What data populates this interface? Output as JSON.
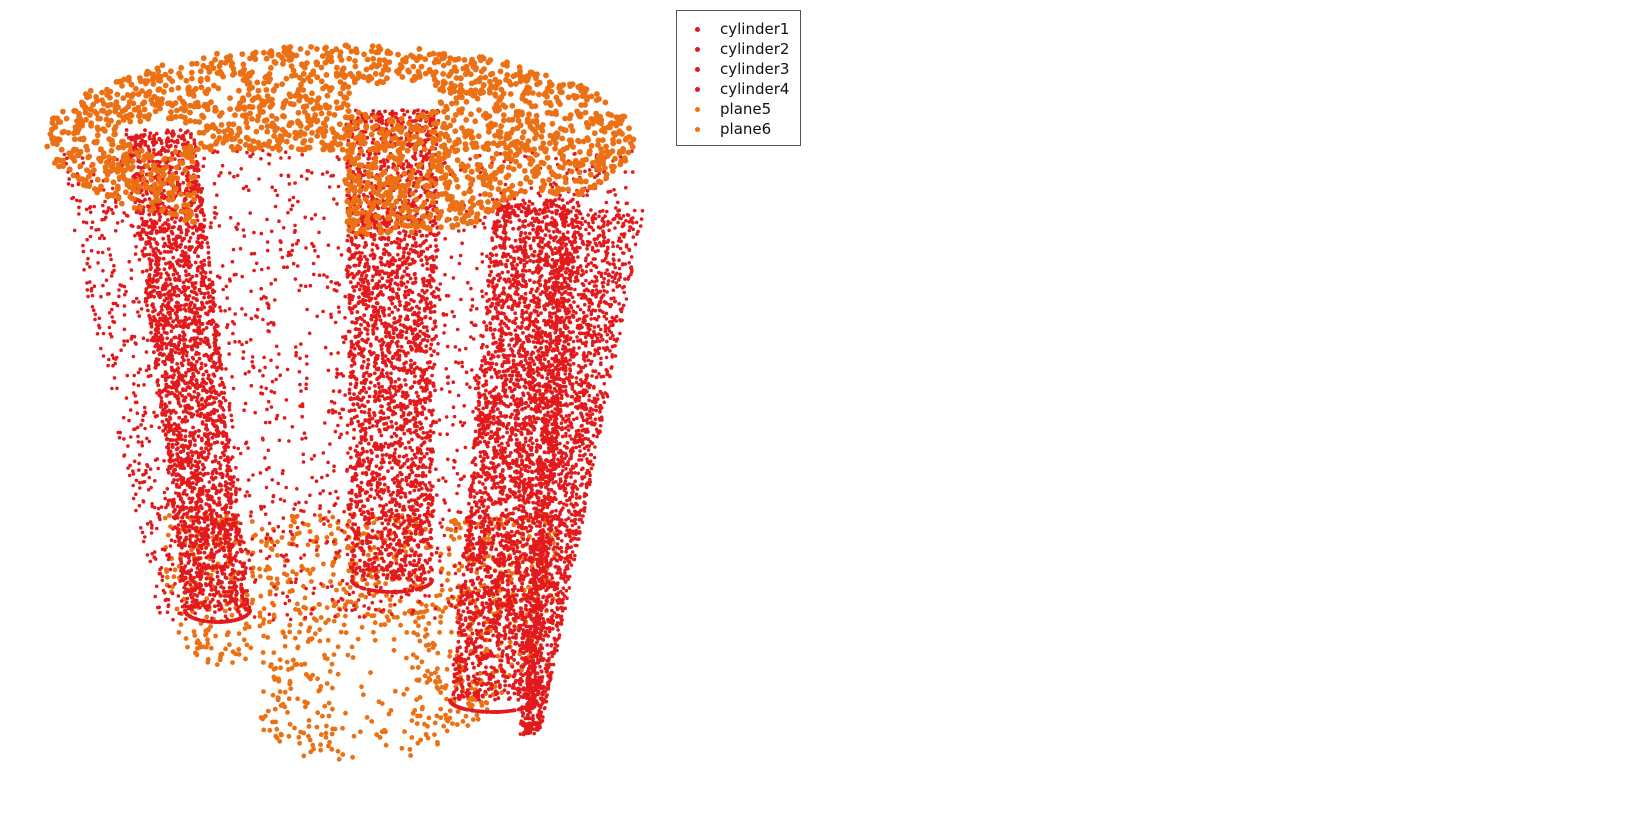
{
  "chart_data": {
    "type": "scatter",
    "title": "",
    "xlabel": "",
    "ylabel": "",
    "grid": false,
    "legend_placement": "top-center",
    "series": [
      {
        "name": "cylinder1",
        "color": "#e31a1c",
        "shape": "outer cylindrical wall"
      },
      {
        "name": "cylinder2",
        "color": "#e31a1c",
        "shape": "inner cylinder (left)"
      },
      {
        "name": "cylinder3",
        "color": "#e31a1c",
        "shape": "inner cylinder (center back)"
      },
      {
        "name": "cylinder4",
        "color": "#e31a1c",
        "shape": "inner cylinder (right front)"
      },
      {
        "name": "plane5",
        "color": "#ec7014",
        "shape": "top annular plane"
      },
      {
        "name": "plane6",
        "color": "#ec7014",
        "shape": "bottom plane"
      }
    ]
  }
}
